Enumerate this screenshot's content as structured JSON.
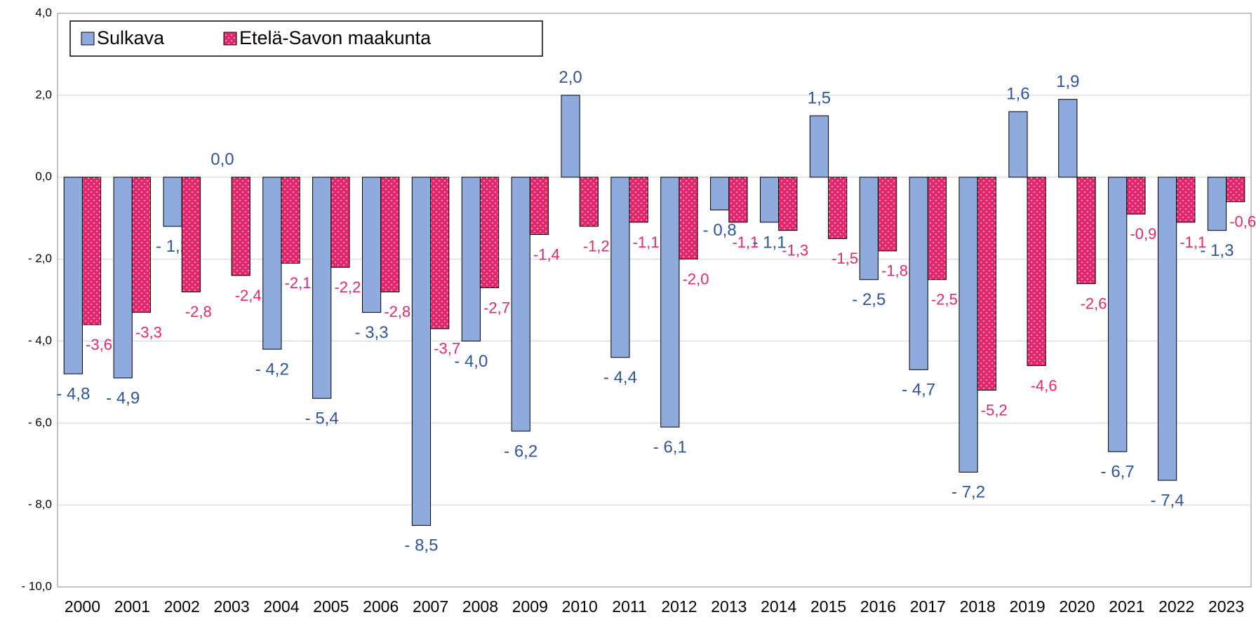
{
  "chart_data": {
    "type": "bar",
    "categories": [
      "2000",
      "2001",
      "2002",
      "2003",
      "2004",
      "2005",
      "2006",
      "2007",
      "2008",
      "2009",
      "2010",
      "2011",
      "2012",
      "2013",
      "2014",
      "2015",
      "2016",
      "2017",
      "2018",
      "2019",
      "2020",
      "2021",
      "2022",
      "2023"
    ],
    "series": [
      {
        "name": "Sulkava",
        "color": "#8faadc",
        "values": [
          -4.8,
          -4.9,
          -1.2,
          0.0,
          -4.2,
          -5.4,
          -3.3,
          -8.5,
          -4.0,
          -6.2,
          2.0,
          -4.4,
          -6.1,
          -0.8,
          -1.1,
          1.5,
          -2.5,
          -4.7,
          -7.2,
          1.6,
          1.9,
          -6.7,
          -7.4,
          -1.3
        ],
        "value_labels": [
          "- 4,8",
          "- 4,9",
          "- 1,2",
          "0,0",
          "- 4,2",
          "- 5,4",
          "- 3,3",
          "- 8,5",
          "- 4,0",
          "- 6,2",
          "2,0",
          "- 4,4",
          "- 6,1",
          "- 0,8",
          "- 1,1",
          "1,5",
          "- 2,5",
          "- 4,7",
          "- 7,2",
          "1,6",
          "1,9",
          "- 6,7",
          "- 7,4",
          "- 1,3"
        ]
      },
      {
        "name": "Etelä-Savon maakunta",
        "color": "#e8266e",
        "values": [
          -3.6,
          -3.3,
          -2.8,
          -2.4,
          -2.1,
          -2.2,
          -2.8,
          -3.7,
          -2.7,
          -1.4,
          -1.2,
          -1.1,
          -2.0,
          -1.1,
          -1.3,
          -1.5,
          -1.8,
          -2.5,
          -5.2,
          -4.6,
          -2.6,
          -0.9,
          -1.1,
          -0.6
        ],
        "value_labels": [
          "-3,6",
          "-3,3",
          "-2,8",
          "-2,4",
          "-2,1",
          "-2,2",
          "-2,8",
          "-3,7",
          "-2,7",
          "-1,4",
          "-1,2",
          "-1,1",
          "-2,0",
          "-1,1",
          "-1,3",
          "-1,5",
          "-1,8",
          "-2,5",
          "-5,2",
          "-4,6",
          "-2,6",
          "-0,9",
          "-1,1",
          "-0,6"
        ]
      }
    ],
    "ylim": [
      -10,
      4
    ],
    "yticks": [
      {
        "value": -10,
        "label": "- 10,0"
      },
      {
        "value": -8,
        "label": "- 8,0"
      },
      {
        "value": -6,
        "label": "- 6,0"
      },
      {
        "value": -4,
        "label": "- 4,0"
      },
      {
        "value": -2,
        "label": "- 2,0"
      },
      {
        "value": 0,
        "label": "0,0"
      },
      {
        "value": 2,
        "label": "2,0"
      },
      {
        "value": 4,
        "label": "4,0"
      }
    ],
    "grid": true,
    "legend": "top-left"
  }
}
